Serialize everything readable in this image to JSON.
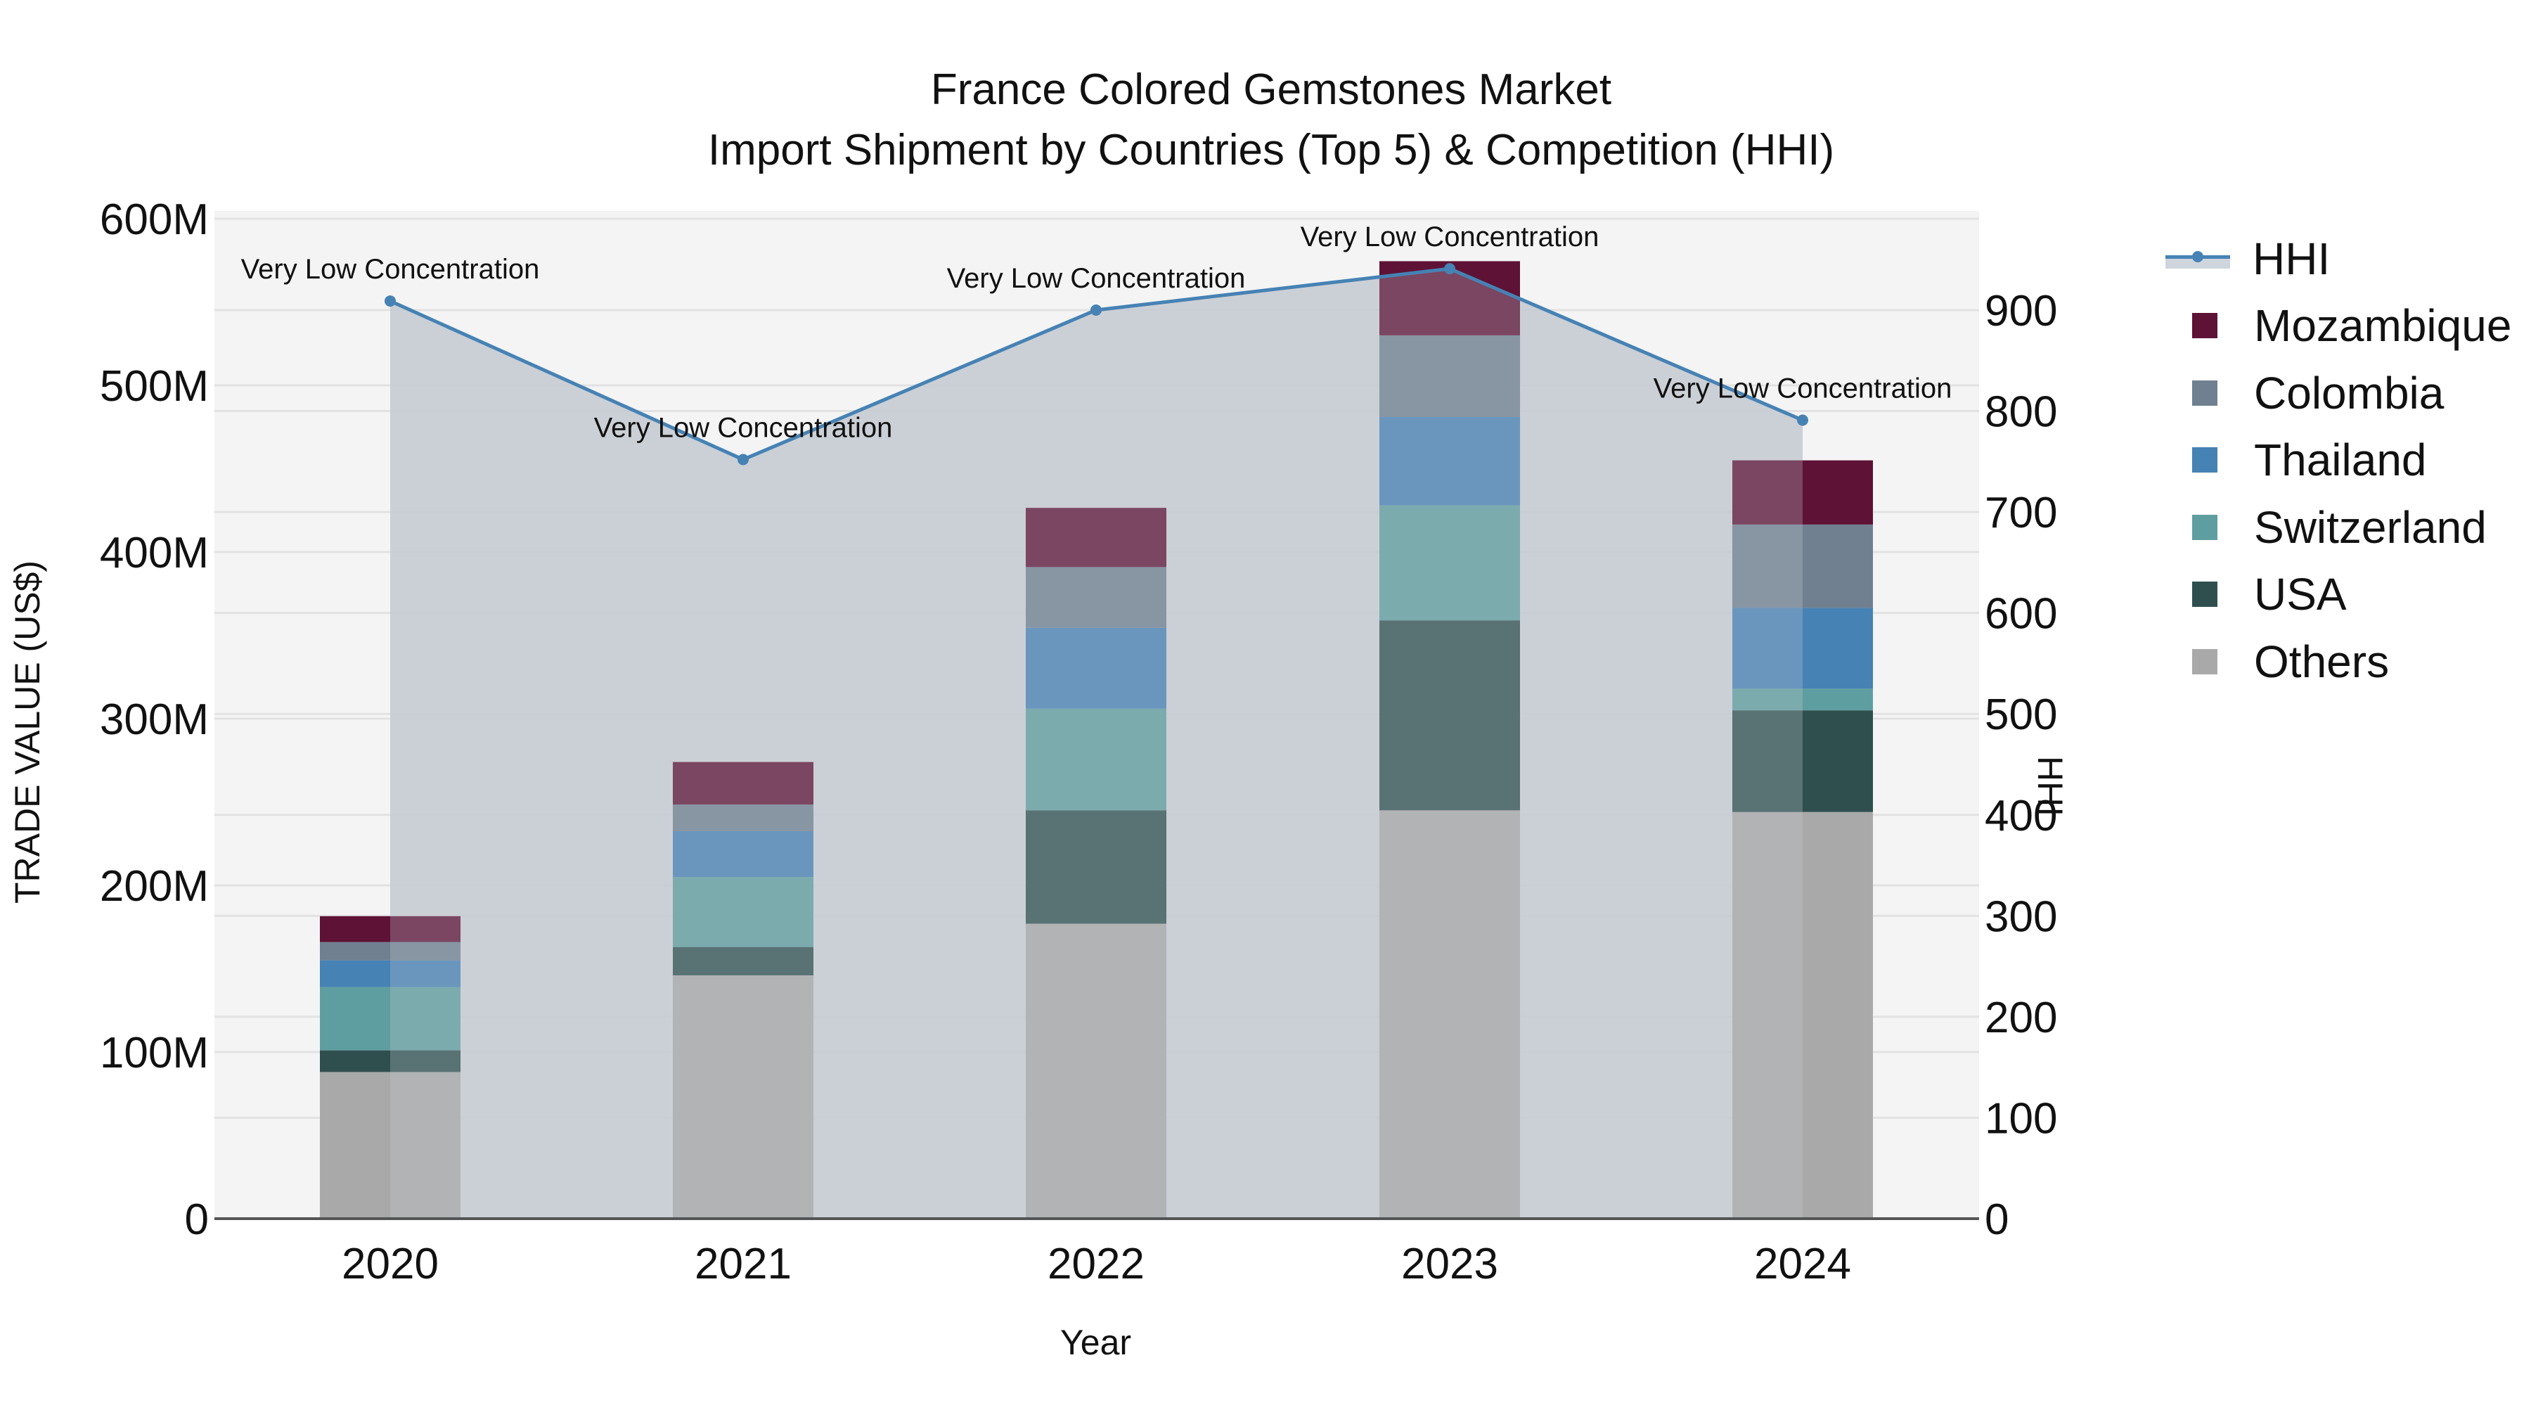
{
  "title": {
    "line1": "France Colored Gemstones Market",
    "line2": "Import Shipment by Countries (Top 5) & Competition (HHI)"
  },
  "axes": {
    "x_title": "Year",
    "y_title": "TRADE VALUE (US$)",
    "y2_title": "HHI"
  },
  "legend": {
    "items": [
      {
        "label": "HHI",
        "type": "line",
        "color": "#4682b4"
      },
      {
        "label": "Mozambique",
        "type": "bar",
        "color": "#5e1235"
      },
      {
        "label": "Colombia",
        "type": "bar",
        "color": "#708090"
      },
      {
        "label": "Thailand",
        "type": "bar",
        "color": "#4682b4"
      },
      {
        "label": "Switzerland",
        "type": "bar",
        "color": "#5f9ea0"
      },
      {
        "label": "USA",
        "type": "bar",
        "color": "#2f4f4f"
      },
      {
        "label": "Others",
        "type": "bar",
        "color": "#a9a9a9"
      }
    ]
  },
  "chart_data": {
    "type": "bar",
    "stacked": true,
    "title": "France Colored Gemstones Market — Import Shipment by Countries (Top 5) & Competition (HHI)",
    "xlabel": "Year",
    "ylabel": "TRADE VALUE (US$)",
    "y2label": "HHI",
    "categories": [
      "2020",
      "2021",
      "2022",
      "2023",
      "2024"
    ],
    "ylim": [
      0,
      600000000
    ],
    "y_ticks": [
      0,
      100000000,
      200000000,
      300000000,
      400000000,
      500000000,
      600000000
    ],
    "y_tick_labels": [
      "0",
      "100M",
      "200M",
      "300M",
      "400M",
      "500M",
      "600M"
    ],
    "y2lim": [
      0,
      990
    ],
    "y2_ticks": [
      0,
      100,
      200,
      300,
      400,
      500,
      600,
      700,
      800,
      900
    ],
    "y2_tick_labels": [
      "0",
      "100",
      "200",
      "300",
      "400",
      "500",
      "600",
      "700",
      "800",
      "900"
    ],
    "grid": true,
    "legend_position": "right",
    "series": [
      {
        "name": "Others",
        "color": "#a9a9a9",
        "values": [
          88000000,
          146000000,
          177000000,
          245000000,
          244000000
        ]
      },
      {
        "name": "USA",
        "color": "#2f4f4f",
        "values": [
          13000000,
          17000000,
          68000000,
          114000000,
          61000000
        ]
      },
      {
        "name": "Switzerland",
        "color": "#5f9ea0",
        "values": [
          38000000,
          42000000,
          61000000,
          69000000,
          13000000
        ]
      },
      {
        "name": "Thailand",
        "color": "#4682b4",
        "values": [
          16000000,
          27500000,
          48500000,
          53000000,
          48500000
        ]
      },
      {
        "name": "Colombia",
        "color": "#708090",
        "values": [
          11000000,
          16000000,
          36500000,
          49000000,
          50000000
        ]
      },
      {
        "name": "Mozambique",
        "color": "#5e1235",
        "values": [
          15500000,
          25500000,
          35500000,
          44500000,
          38500000
        ]
      }
    ],
    "hhi": {
      "name": "HHI",
      "type": "line+area",
      "axis": "y2",
      "color": "#4682b4",
      "values": [
        909,
        752,
        900,
        941,
        791
      ],
      "annotations": [
        "Very Low Concentration",
        "Very Low Concentration",
        "Very Low Concentration",
        "Very Low Concentration",
        "Very Low Concentration"
      ]
    }
  },
  "colors": {
    "plot_background": "#f4f4f4",
    "hhi_area": "#c8cdd4",
    "grid": "#e2e2e2",
    "axis_line": "#555555"
  }
}
